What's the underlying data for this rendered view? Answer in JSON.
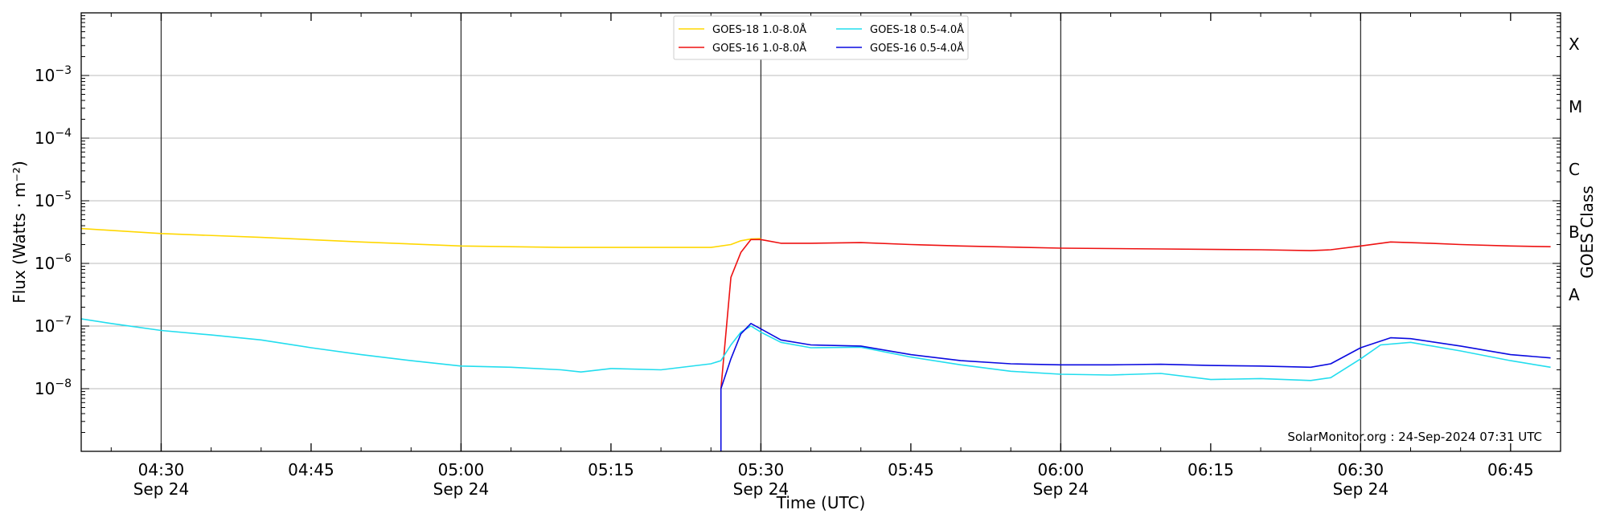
{
  "chart_data": {
    "type": "line",
    "title": "",
    "xlabel": "Time (UTC)",
    "ylabel": "Flux (Watts · m⁻²)",
    "ylabel_right": "GOES Class",
    "y_scale": "log",
    "ylim": [
      1e-09,
      0.01
    ],
    "xlim": [
      "2024-09-24T04:22",
      "2024-09-24T06:50"
    ],
    "grid": "horizontal at decades; vertical at half-hours",
    "legend_placement": "top-center",
    "credit": "SolarMonitor.org : 24-Sep-2024 07:31 UTC",
    "y_ticks": [
      {
        "value": 1e-08,
        "base": "10",
        "exp": "−8"
      },
      {
        "value": 1e-07,
        "base": "10",
        "exp": "−7"
      },
      {
        "value": 1e-06,
        "base": "10",
        "exp": "−6"
      },
      {
        "value": 1e-05,
        "base": "10",
        "exp": "−5"
      },
      {
        "value": 0.0001,
        "base": "10",
        "exp": "−4"
      },
      {
        "value": 0.001,
        "base": "10",
        "exp": "−3"
      }
    ],
    "x_ticks": [
      {
        "time": "04:30",
        "l1": "04:30",
        "l2": "Sep 24",
        "major": true
      },
      {
        "time": "04:45",
        "l1": "04:45",
        "l2": "",
        "major": false
      },
      {
        "time": "05:00",
        "l1": "05:00",
        "l2": "Sep 24",
        "major": true
      },
      {
        "time": "05:15",
        "l1": "05:15",
        "l2": "",
        "major": false
      },
      {
        "time": "05:30",
        "l1": "05:30",
        "l2": "Sep 24",
        "major": true
      },
      {
        "time": "05:45",
        "l1": "05:45",
        "l2": "",
        "major": false
      },
      {
        "time": "06:00",
        "l1": "06:00",
        "l2": "Sep 24",
        "major": true
      },
      {
        "time": "06:15",
        "l1": "06:15",
        "l2": "",
        "major": false
      },
      {
        "time": "06:30",
        "l1": "06:30",
        "l2": "Sep 24",
        "major": true
      },
      {
        "time": "06:45",
        "l1": "06:45",
        "l2": "",
        "major": false
      }
    ],
    "classes": [
      {
        "label": "A",
        "value": 1e-07
      },
      {
        "label": "B",
        "value": 1e-06
      },
      {
        "label": "C",
        "value": 1e-05
      },
      {
        "label": "M",
        "value": 0.0001
      },
      {
        "label": "X",
        "value": 0.001
      }
    ],
    "series": [
      {
        "name": "GOES-18 1.0-8.0Å",
        "color": "#ffd700",
        "points": [
          [
            "04:22",
            3.6e-06
          ],
          [
            "04:30",
            3e-06
          ],
          [
            "04:40",
            2.6e-06
          ],
          [
            "04:50",
            2.2e-06
          ],
          [
            "05:00",
            1.9e-06
          ],
          [
            "05:10",
            1.8e-06
          ],
          [
            "05:20",
            1.8e-06
          ],
          [
            "05:25",
            1.8e-06
          ],
          [
            "05:27",
            2e-06
          ],
          [
            "05:28",
            2.3e-06
          ],
          [
            "05:29",
            2.45e-06
          ],
          [
            "05:30",
            2.5e-06
          ]
        ]
      },
      {
        "name": "GOES-16 1.0-8.0Å",
        "color": "#ee1111",
        "points": [
          [
            "05:26",
            1e-08
          ],
          [
            "05:27",
            6e-07
          ],
          [
            "05:28",
            1.5e-06
          ],
          [
            "05:29",
            2.4e-06
          ],
          [
            "05:30",
            2.4e-06
          ],
          [
            "05:32",
            2.1e-06
          ],
          [
            "05:35",
            2.1e-06
          ],
          [
            "05:40",
            2.15e-06
          ],
          [
            "05:45",
            2e-06
          ],
          [
            "05:50",
            1.9e-06
          ],
          [
            "06:00",
            1.75e-06
          ],
          [
            "06:10",
            1.7e-06
          ],
          [
            "06:20",
            1.65e-06
          ],
          [
            "06:25",
            1.6e-06
          ],
          [
            "06:27",
            1.65e-06
          ],
          [
            "06:30",
            1.9e-06
          ],
          [
            "06:33",
            2.2e-06
          ],
          [
            "06:37",
            2.1e-06
          ],
          [
            "06:40",
            2e-06
          ],
          [
            "06:45",
            1.9e-06
          ],
          [
            "06:49",
            1.85e-06
          ]
        ]
      },
      {
        "name": "GOES-18 0.5-4.0Å",
        "color": "#22ddee",
        "points": [
          [
            "04:22",
            1.3e-07
          ],
          [
            "04:25",
            1.1e-07
          ],
          [
            "04:30",
            8.5e-08
          ],
          [
            "04:35",
            7.2e-08
          ],
          [
            "04:40",
            6e-08
          ],
          [
            "04:45",
            4.5e-08
          ],
          [
            "04:50",
            3.5e-08
          ],
          [
            "04:55",
            2.8e-08
          ],
          [
            "05:00",
            2.3e-08
          ],
          [
            "05:05",
            2.2e-08
          ],
          [
            "05:10",
            2e-08
          ],
          [
            "05:12",
            1.85e-08
          ],
          [
            "05:15",
            2.1e-08
          ],
          [
            "05:20",
            2e-08
          ],
          [
            "05:25",
            2.5e-08
          ],
          [
            "05:26",
            2.8e-08
          ],
          [
            "05:27",
            5e-08
          ],
          [
            "05:28",
            8e-08
          ],
          [
            "05:29",
            1e-07
          ],
          [
            "05:30",
            8e-08
          ],
          [
            "05:32",
            5.5e-08
          ],
          [
            "05:35",
            4.5e-08
          ],
          [
            "05:40",
            4.6e-08
          ],
          [
            "05:45",
            3.2e-08
          ],
          [
            "05:50",
            2.4e-08
          ],
          [
            "05:55",
            1.9e-08
          ],
          [
            "06:00",
            1.7e-08
          ],
          [
            "06:05",
            1.65e-08
          ],
          [
            "06:10",
            1.75e-08
          ],
          [
            "06:15",
            1.4e-08
          ],
          [
            "06:20",
            1.45e-08
          ],
          [
            "06:25",
            1.35e-08
          ],
          [
            "06:27",
            1.5e-08
          ],
          [
            "06:30",
            3e-08
          ],
          [
            "06:32",
            5e-08
          ],
          [
            "06:35",
            5.5e-08
          ],
          [
            "06:40",
            4e-08
          ],
          [
            "06:45",
            2.8e-08
          ],
          [
            "06:49",
            2.2e-08
          ]
        ]
      },
      {
        "name": "GOES-16 0.5-4.0Å",
        "color": "#0a0ae0",
        "points": [
          [
            "05:26",
            1e-09
          ],
          [
            "05:26",
            1e-08
          ],
          [
            "05:27",
            3e-08
          ],
          [
            "05:28",
            7.5e-08
          ],
          [
            "05:29",
            1.1e-07
          ],
          [
            "05:30",
            9e-08
          ],
          [
            "05:32",
            6e-08
          ],
          [
            "05:35",
            5e-08
          ],
          [
            "05:40",
            4.8e-08
          ],
          [
            "05:45",
            3.5e-08
          ],
          [
            "05:50",
            2.8e-08
          ],
          [
            "05:55",
            2.5e-08
          ],
          [
            "06:00",
            2.4e-08
          ],
          [
            "06:05",
            2.4e-08
          ],
          [
            "06:10",
            2.45e-08
          ],
          [
            "06:15",
            2.35e-08
          ],
          [
            "06:20",
            2.3e-08
          ],
          [
            "06:25",
            2.2e-08
          ],
          [
            "06:27",
            2.5e-08
          ],
          [
            "06:30",
            4.5e-08
          ],
          [
            "06:33",
            6.5e-08
          ],
          [
            "06:35",
            6.3e-08
          ],
          [
            "06:40",
            4.8e-08
          ],
          [
            "06:45",
            3.5e-08
          ],
          [
            "06:49",
            3.1e-08
          ]
        ]
      }
    ]
  }
}
